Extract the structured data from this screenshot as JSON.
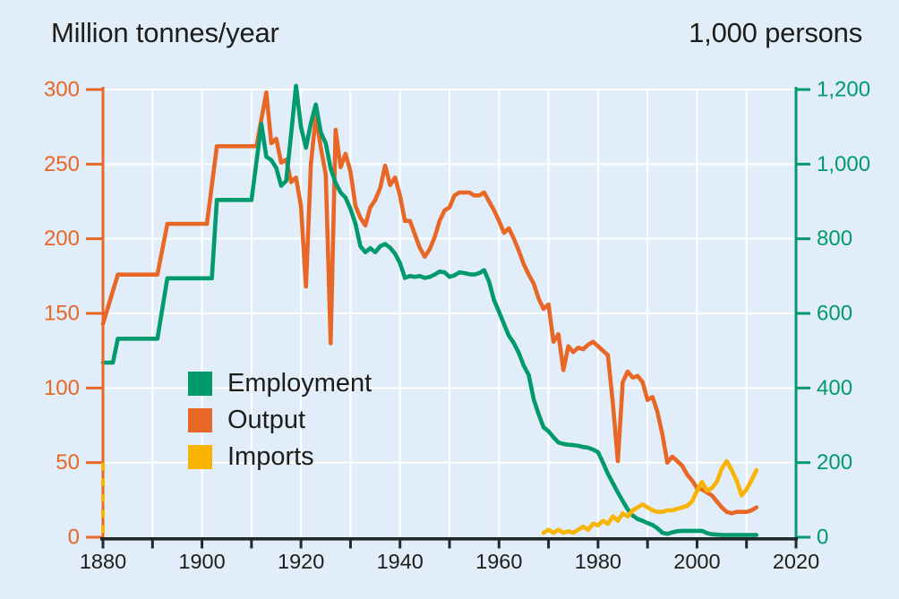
{
  "page": {
    "background_color": "#e1edf8",
    "grid_color": "#ffffff",
    "text_color": "#1d1d1b",
    "x_axis_color": "#1e282d"
  },
  "chart_data": {
    "type": "line",
    "title": "",
    "left_axis": {
      "title": "Million tonnes/year",
      "min": 0,
      "max": 300,
      "tick_step": 50,
      "tick_labels": [
        "0",
        "50",
        "100",
        "150",
        "200",
        "250",
        "300"
      ],
      "color": "#e96726"
    },
    "right_axis": {
      "title": "1,000 persons",
      "min": 0,
      "max": 1200,
      "tick_step": 200,
      "tick_labels": [
        "0",
        "200",
        "400",
        "600",
        "800",
        "1,000",
        "1,200"
      ],
      "color": "#009a6d"
    },
    "x_axis": {
      "min": 1880,
      "max": 2020,
      "minor_tick_step": 10,
      "label_step": 20,
      "labels": [
        "1880",
        "1900",
        "1920",
        "1940",
        "1960",
        "1980",
        "2000",
        "2020"
      ]
    },
    "grid": {
      "visible": true,
      "x_step_years": 10,
      "y_step_left": 50
    },
    "legend": {
      "position": "inside-left-middle",
      "items": [
        {
          "label": "Employment",
          "color": "#009a6d"
        },
        {
          "label": "Output",
          "color": "#e96726"
        },
        {
          "label": "Imports",
          "color": "#f9b301"
        }
      ]
    },
    "spine_marker": {
      "description": "dashed yellow segment drawn on the left spine at 1880 between 0 and 50",
      "year": 1880,
      "from": 0,
      "to": 50,
      "color": "#f9b301"
    },
    "series": [
      {
        "name": "Output",
        "axis": "left",
        "unit": "million tonnes/year",
        "color": "#e96726",
        "points": [
          [
            1880,
            143
          ],
          [
            1883,
            176
          ],
          [
            1891,
            176
          ],
          [
            1893,
            210
          ],
          [
            1901,
            210
          ],
          [
            1903,
            262
          ],
          [
            1911,
            262
          ],
          [
            1913,
            298
          ],
          [
            1914,
            264
          ],
          [
            1915,
            267
          ],
          [
            1916,
            251
          ],
          [
            1917,
            253
          ],
          [
            1918,
            238
          ],
          [
            1919,
            241
          ],
          [
            1920,
            222
          ],
          [
            1921,
            168
          ],
          [
            1922,
            250
          ],
          [
            1923,
            282
          ],
          [
            1924,
            261
          ],
          [
            1925,
            243
          ],
          [
            1926,
            130
          ],
          [
            1927,
            273
          ],
          [
            1928,
            248
          ],
          [
            1929,
            257
          ],
          [
            1930,
            245
          ],
          [
            1931,
            222
          ],
          [
            1932,
            214
          ],
          [
            1933,
            209
          ],
          [
            1934,
            221
          ],
          [
            1935,
            226
          ],
          [
            1936,
            234
          ],
          [
            1937,
            249
          ],
          [
            1938,
            236
          ],
          [
            1939,
            241
          ],
          [
            1940,
            229
          ],
          [
            1941,
            212
          ],
          [
            1942,
            212
          ],
          [
            1943,
            203
          ],
          [
            1944,
            194
          ],
          [
            1945,
            188
          ],
          [
            1946,
            193
          ],
          [
            1947,
            201
          ],
          [
            1948,
            212
          ],
          [
            1949,
            219
          ],
          [
            1950,
            221
          ],
          [
            1951,
            229
          ],
          [
            1952,
            231
          ],
          [
            1953,
            231
          ],
          [
            1954,
            231
          ],
          [
            1955,
            229
          ],
          [
            1956,
            229
          ],
          [
            1957,
            231
          ],
          [
            1958,
            225
          ],
          [
            1959,
            219
          ],
          [
            1960,
            212
          ],
          [
            1961,
            204
          ],
          [
            1962,
            207
          ],
          [
            1963,
            200
          ],
          [
            1964,
            192
          ],
          [
            1965,
            183
          ],
          [
            1966,
            176
          ],
          [
            1967,
            170
          ],
          [
            1968,
            160
          ],
          [
            1969,
            153
          ],
          [
            1970,
            156
          ],
          [
            1971,
            131
          ],
          [
            1972,
            136
          ],
          [
            1973,
            112
          ],
          [
            1974,
            128
          ],
          [
            1975,
            124
          ],
          [
            1976,
            127
          ],
          [
            1977,
            126
          ],
          [
            1978,
            129
          ],
          [
            1979,
            131
          ],
          [
            1980,
            128
          ],
          [
            1981,
            125
          ],
          [
            1982,
            122
          ],
          [
            1983,
            90
          ],
          [
            1984,
            51
          ],
          [
            1985,
            104
          ],
          [
            1986,
            111
          ],
          [
            1987,
            107
          ],
          [
            1988,
            108
          ],
          [
            1989,
            104
          ],
          [
            1990,
            92
          ],
          [
            1991,
            94
          ],
          [
            1992,
            84
          ],
          [
            1993,
            69
          ],
          [
            1994,
            50
          ],
          [
            1995,
            54
          ],
          [
            1996,
            51
          ],
          [
            1997,
            48
          ],
          [
            1998,
            42
          ],
          [
            1999,
            38
          ],
          [
            2000,
            33
          ],
          [
            2001,
            32
          ],
          [
            2002,
            30
          ],
          [
            2003,
            28
          ],
          [
            2004,
            24
          ],
          [
            2005,
            20
          ],
          [
            2006,
            17
          ],
          [
            2007,
            16
          ],
          [
            2008,
            17
          ],
          [
            2009,
            17
          ],
          [
            2010,
            17
          ],
          [
            2011,
            18
          ],
          [
            2012,
            20
          ]
        ]
      },
      {
        "name": "Employment",
        "axis": "right",
        "unit": "1,000 persons",
        "color": "#009a6d",
        "points": [
          [
            1880,
            468
          ],
          [
            1882,
            468
          ],
          [
            1883,
            532
          ],
          [
            1891,
            532
          ],
          [
            1893,
            694
          ],
          [
            1902,
            694
          ],
          [
            1903,
            904
          ],
          [
            1910,
            904
          ],
          [
            1912,
            1108
          ],
          [
            1913,
            1020
          ],
          [
            1914,
            1011
          ],
          [
            1915,
            990
          ],
          [
            1916,
            942
          ],
          [
            1917,
            955
          ],
          [
            1918,
            1080
          ],
          [
            1919,
            1210
          ],
          [
            1920,
            1100
          ],
          [
            1921,
            1044
          ],
          [
            1922,
            1110
          ],
          [
            1923,
            1160
          ],
          [
            1924,
            1085
          ],
          [
            1925,
            1056
          ],
          [
            1926,
            988
          ],
          [
            1927,
            950
          ],
          [
            1928,
            924
          ],
          [
            1929,
            910
          ],
          [
            1930,
            880
          ],
          [
            1931,
            840
          ],
          [
            1932,
            780
          ],
          [
            1933,
            764
          ],
          [
            1934,
            775
          ],
          [
            1935,
            764
          ],
          [
            1936,
            780
          ],
          [
            1937,
            786
          ],
          [
            1938,
            776
          ],
          [
            1939,
            760
          ],
          [
            1940,
            735
          ],
          [
            1941,
            695
          ],
          [
            1942,
            700
          ],
          [
            1943,
            698
          ],
          [
            1944,
            700
          ],
          [
            1945,
            695
          ],
          [
            1946,
            698
          ],
          [
            1947,
            704
          ],
          [
            1948,
            712
          ],
          [
            1949,
            710
          ],
          [
            1950,
            698
          ],
          [
            1951,
            702
          ],
          [
            1952,
            710
          ],
          [
            1953,
            708
          ],
          [
            1954,
            705
          ],
          [
            1955,
            704
          ],
          [
            1956,
            708
          ],
          [
            1957,
            716
          ],
          [
            1958,
            685
          ],
          [
            1959,
            635
          ],
          [
            1960,
            604
          ],
          [
            1961,
            572
          ],
          [
            1962,
            540
          ],
          [
            1963,
            520
          ],
          [
            1964,
            494
          ],
          [
            1965,
            460
          ],
          [
            1966,
            435
          ],
          [
            1967,
            370
          ],
          [
            1968,
            330
          ],
          [
            1969,
            295
          ],
          [
            1970,
            284
          ],
          [
            1971,
            268
          ],
          [
            1972,
            254
          ],
          [
            1973,
            250
          ],
          [
            1974,
            248
          ],
          [
            1975,
            247
          ],
          [
            1976,
            245
          ],
          [
            1977,
            242
          ],
          [
            1978,
            240
          ],
          [
            1979,
            235
          ],
          [
            1980,
            228
          ],
          [
            1981,
            200
          ],
          [
            1982,
            170
          ],
          [
            1983,
            145
          ],
          [
            1984,
            120
          ],
          [
            1985,
            97
          ],
          [
            1986,
            75
          ],
          [
            1987,
            58
          ],
          [
            1988,
            49
          ],
          [
            1989,
            44
          ],
          [
            1990,
            38
          ],
          [
            1991,
            33
          ],
          [
            1992,
            24
          ],
          [
            1993,
            12
          ],
          [
            1994,
            9
          ],
          [
            1995,
            13
          ],
          [
            1996,
            16
          ],
          [
            1997,
            17
          ],
          [
            1998,
            17
          ],
          [
            1999,
            17
          ],
          [
            2000,
            17
          ],
          [
            2001,
            17
          ],
          [
            2002,
            11
          ],
          [
            2003,
            8
          ],
          [
            2004,
            7
          ],
          [
            2005,
            6
          ],
          [
            2006,
            6
          ],
          [
            2007,
            6
          ],
          [
            2008,
            6
          ],
          [
            2009,
            6
          ],
          [
            2010,
            6
          ],
          [
            2011,
            6
          ],
          [
            2012,
            6
          ]
        ]
      },
      {
        "name": "Imports",
        "axis": "left",
        "unit": "million tonnes/year",
        "color": "#f9b301",
        "points": [
          [
            1969,
            3
          ],
          [
            1970,
            5
          ],
          [
            1971,
            3
          ],
          [
            1972,
            5
          ],
          [
            1973,
            3
          ],
          [
            1974,
            4
          ],
          [
            1975,
            3
          ],
          [
            1976,
            5
          ],
          [
            1977,
            7
          ],
          [
            1978,
            5
          ],
          [
            1979,
            9
          ],
          [
            1980,
            8
          ],
          [
            1981,
            11
          ],
          [
            1982,
            9
          ],
          [
            1983,
            14
          ],
          [
            1984,
            11
          ],
          [
            1985,
            16
          ],
          [
            1986,
            14
          ],
          [
            1987,
            18
          ],
          [
            1988,
            20
          ],
          [
            1989,
            22
          ],
          [
            1990,
            20
          ],
          [
            1991,
            18
          ],
          [
            1992,
            17
          ],
          [
            1993,
            17
          ],
          [
            1994,
            18
          ],
          [
            1995,
            18
          ],
          [
            1996,
            19
          ],
          [
            1997,
            20
          ],
          [
            1998,
            21
          ],
          [
            1999,
            24
          ],
          [
            2000,
            31
          ],
          [
            2001,
            37
          ],
          [
            2002,
            31
          ],
          [
            2003,
            33
          ],
          [
            2004,
            37
          ],
          [
            2005,
            46
          ],
          [
            2006,
            51
          ],
          [
            2007,
            45
          ],
          [
            2008,
            38
          ],
          [
            2009,
            28
          ],
          [
            2010,
            32
          ],
          [
            2011,
            38
          ],
          [
            2012,
            45
          ]
        ]
      }
    ]
  }
}
